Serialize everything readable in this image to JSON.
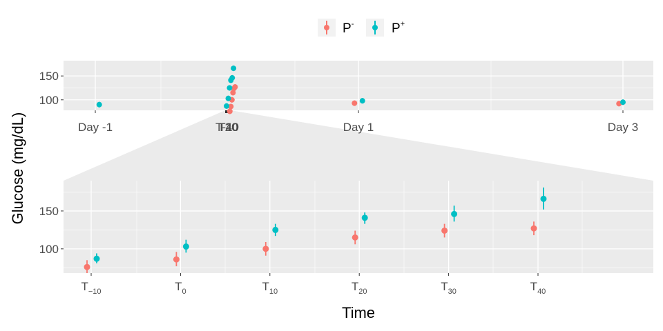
{
  "chart_data": [
    {
      "panel": "overview",
      "type": "scatter",
      "xlabel": "",
      "ylabel": "Glucose (mg/dL)",
      "yticks": [
        100,
        150
      ],
      "x_tick_labels": [
        {
          "x": 0,
          "label": "Day -1"
        },
        {
          "x": 1,
          "label": "T-10"
        },
        {
          "x": 1.005,
          "label": "T20"
        },
        {
          "x": 1.01,
          "label": "T40"
        },
        {
          "x": 2,
          "label": "Day 1"
        },
        {
          "x": 4,
          "label": "Day 3"
        }
      ],
      "ylim": [
        78,
        182
      ],
      "series": [
        {
          "name": "P-",
          "color": "#F8766D",
          "points": [
            {
              "x": 1.02,
              "y": 76
            },
            {
              "x": 1.028,
              "y": 86
            },
            {
              "x": 1.036,
              "y": 100
            },
            {
              "x": 1.044,
              "y": 115
            },
            {
              "x": 1.052,
              "y": 124
            },
            {
              "x": 1.06,
              "y": 127
            },
            {
              "x": 1.97,
              "y": 93
            },
            {
              "x": 3.97,
              "y": 92
            }
          ]
        },
        {
          "name": "P+",
          "color": "#00BFC4",
          "points": [
            {
              "x": 0.03,
              "y": 90
            },
            {
              "x": 0.995,
              "y": 87
            },
            {
              "x": 1.008,
              "y": 103
            },
            {
              "x": 1.018,
              "y": 125
            },
            {
              "x": 1.028,
              "y": 141
            },
            {
              "x": 1.038,
              "y": 146
            },
            {
              "x": 1.048,
              "y": 166
            },
            {
              "x": 2.03,
              "y": 98
            },
            {
              "x": 4.03,
              "y": 95
            }
          ]
        }
      ]
    },
    {
      "panel": "zoom",
      "type": "scatter",
      "xlabel": "Time",
      "ylabel": "Glucose (mg/dL)",
      "yticks": [
        100,
        150
      ],
      "ylim": [
        68,
        190
      ],
      "categories": [
        "T-10",
        "T0",
        "T10",
        "T20",
        "T30",
        "T40"
      ],
      "series": [
        {
          "name": "P-",
          "color": "#F8766D",
          "values": [
            76,
            86,
            100,
            115,
            124,
            127
          ],
          "err_low": [
            68,
            77,
            91,
            106,
            115,
            118
          ],
          "err_high": [
            85,
            96,
            109,
            124,
            133,
            136
          ]
        },
        {
          "name": "P+",
          "color": "#00BFC4",
          "values": [
            87,
            103,
            125,
            141,
            146,
            166
          ],
          "err_low": [
            81,
            95,
            117,
            133,
            136,
            152
          ],
          "err_high": [
            94,
            112,
            133,
            148,
            157,
            181
          ]
        }
      ]
    }
  ],
  "ylabel": "Glucose (mg/dL)",
  "xlabel": "Time",
  "legend": {
    "items": [
      {
        "label": "P",
        "superscript": "-",
        "color": "#F8766D"
      },
      {
        "label": "P",
        "superscript": "+",
        "color": "#00BFC4"
      }
    ]
  },
  "zoom_ticks": [
    {
      "base": "T",
      "sub": "−10"
    },
    {
      "base": "T",
      "sub": "0"
    },
    {
      "base": "T",
      "sub": "10"
    },
    {
      "base": "T",
      "sub": "20"
    },
    {
      "base": "T",
      "sub": "30"
    },
    {
      "base": "T",
      "sub": "40"
    }
  ],
  "overview_ticks": [
    "Day -1",
    "T-10",
    "T20",
    "T40",
    "Day 1",
    "Day 3"
  ],
  "colors": {
    "panel_bg": "#EBEBEB",
    "grid": "#FFFFFF",
    "p_minus": "#F8766D",
    "p_plus": "#00BFC4"
  }
}
